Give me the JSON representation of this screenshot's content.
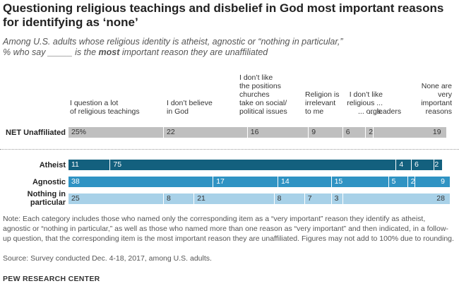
{
  "title": "Questioning religious teachings and disbelief in God most important reasons for identifying as ‘none’",
  "subtitle_line1": "Among U.S. adults whose religious identity is atheist, agnostic or “nothing in particular,”",
  "subtitle_line2_pre": "% who say _____ is the ",
  "subtitle_line2_bold": "most",
  "subtitle_line2_post": " important reason they are unaffiliated",
  "colors": {
    "gray": "#bfbfbf",
    "dark_blue": "#13607e",
    "mid_blue": "#2f93c3",
    "light_blue": "#a8d1e8"
  },
  "chart_data": {
    "type": "bar",
    "orientation": "horizontal",
    "stacked": true,
    "categories": [
      "I question a lot of religious teachings",
      "I don’t believe in God",
      "I don’t like the positions churches take on social/ political issues",
      "Religion is irrelevant to me",
      "I don’t like religious ... orgs.",
      "I don’t like religious ... leaders",
      "None are very important reasons"
    ],
    "category_labels": [
      "I question a lot\nof religious teachings",
      "I don’t believe\nin God",
      "I don’t like\nthe positions\nchurches\ntake on social/\npolitical issues",
      "Religion is\nirrelevant\nto me",
      "I don’t like\nreligious ...\n... orgs.",
      "... leaders",
      "None are\nvery\nimportant\nreasons"
    ],
    "rows": [
      {
        "label": "NET Unaffiliated",
        "values": [
          25,
          22,
          16,
          9,
          6,
          2,
          19
        ],
        "value_labels": [
          "25%",
          "22",
          "16",
          "9",
          "6",
          "2",
          "19"
        ]
      },
      {
        "label": "Atheist",
        "values": [
          11,
          75,
          0,
          0,
          4,
          6,
          2
        ],
        "value_labels": [
          "11",
          "75",
          "",
          "",
          "4",
          "6",
          "2"
        ]
      },
      {
        "label": "Agnostic",
        "values": [
          38,
          17,
          14,
          15,
          5,
          2,
          9
        ],
        "value_labels": [
          "38",
          "17",
          "14",
          "15",
          "5",
          "2",
          "9"
        ]
      },
      {
        "label": "Nothing in\nparticular",
        "values": [
          25,
          8,
          21,
          8,
          7,
          3,
          28
        ],
        "value_labels": [
          "25",
          "8",
          "21",
          "8",
          "7",
          "3",
          "28"
        ]
      }
    ]
  },
  "note": "Note: Each category includes those who named only the corresponding item as a “very important” reason they identify as atheist, agnostic or “nothing in particular,” as well as those who named more than one reason as “very important” and then indicated, in a follow-up question, that the corresponding item is the most important reason they are unaffiliated. Figures may not add to 100% due to rounding.",
  "source": "Source: Survey conducted Dec. 4-18, 2017, among U.S. adults.",
  "footer": "PEW RESEARCH CENTER"
}
